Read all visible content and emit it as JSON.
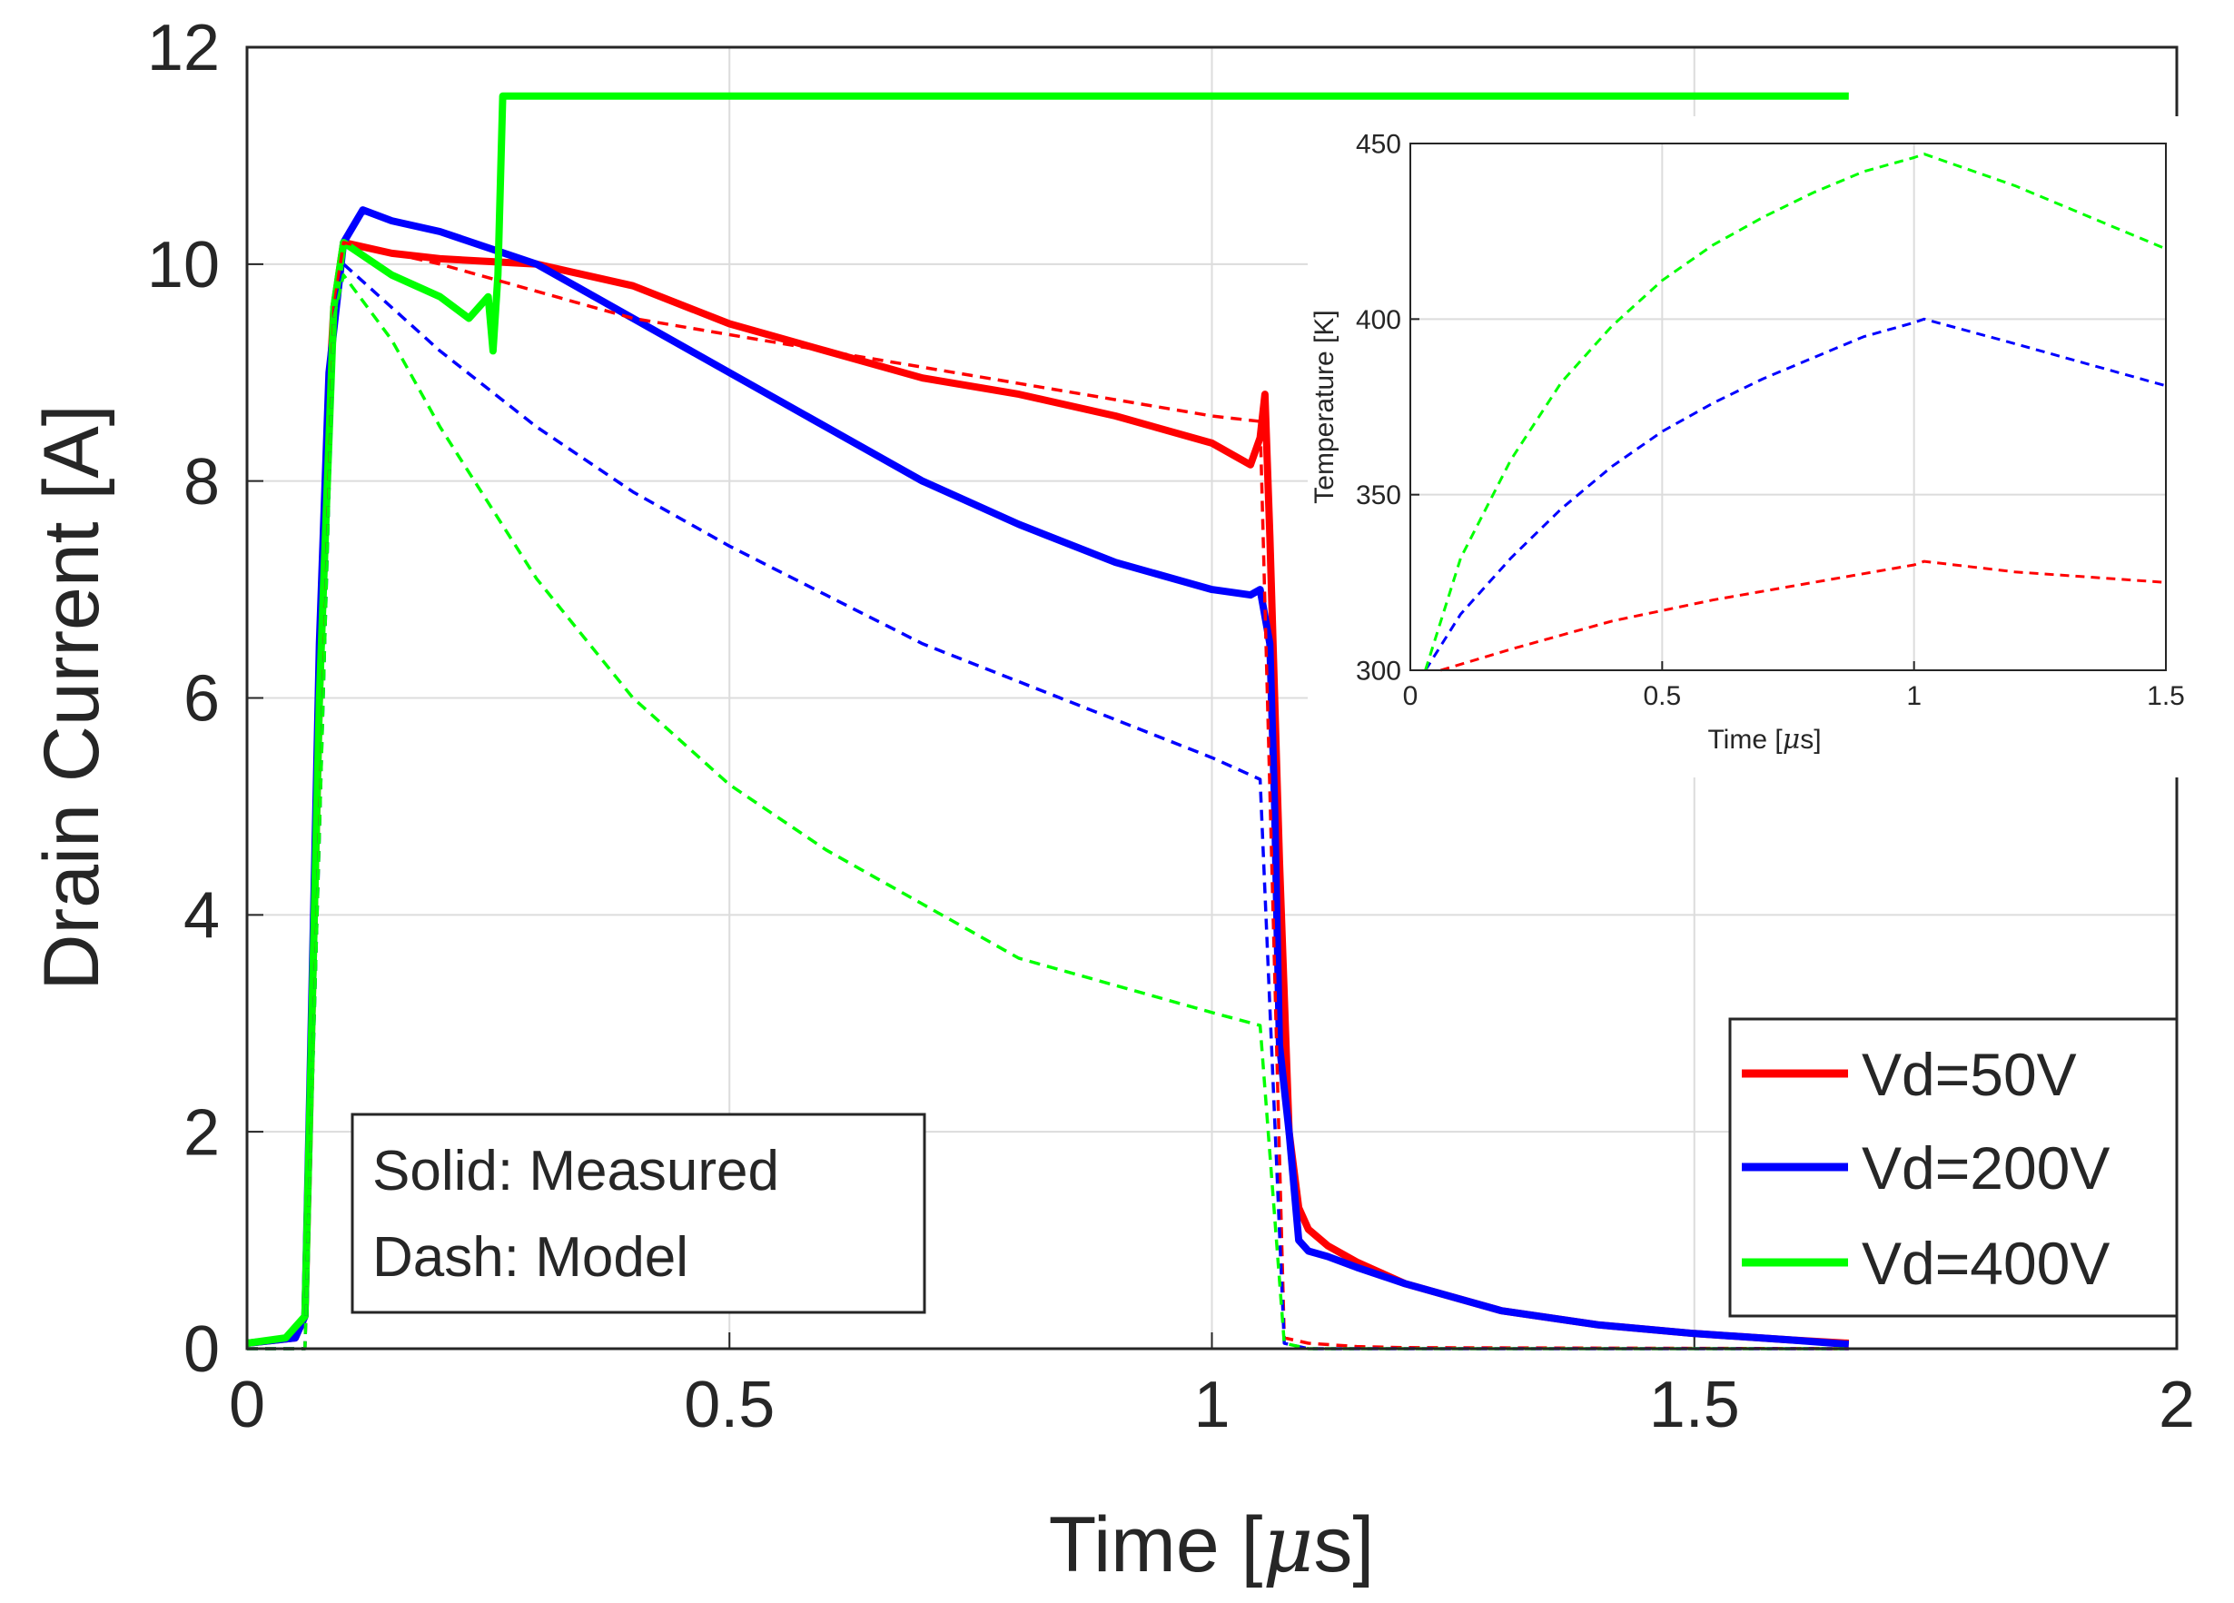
{
  "chart_data": [
    {
      "type": "line",
      "title": "",
      "xlabel": "Time [µs]",
      "xlabel_prefix": "Time [",
      "xlabel_mu": "μ",
      "xlabel_suffix": "s]",
      "ylabel": "Drain Current [A]",
      "xlim": [
        0,
        2
      ],
      "ylim": [
        0,
        12
      ],
      "xticks": [
        0,
        0.5,
        1,
        1.5,
        2
      ],
      "xtick_labels": [
        "0",
        "0.5",
        "1",
        "1.5",
        "2"
      ],
      "yticks": [
        0,
        2,
        4,
        6,
        8,
        10,
        12
      ],
      "ytick_labels": [
        "0",
        "2",
        "4",
        "6",
        "8",
        "10",
        "12"
      ],
      "grid": true,
      "legend": {
        "position": "bottom-right",
        "entries": [
          {
            "label": "Vd=50V",
            "color": "#ff0000"
          },
          {
            "label": "Vd=200V",
            "color": "#0000ff"
          },
          {
            "label": "Vd=400V",
            "color": "#00ff00"
          }
        ]
      },
      "annotation": {
        "position": "bottom-left",
        "lines": [
          "Solid: Measured",
          "Dash: Model"
        ]
      },
      "series": [
        {
          "name": "Vd=50V measured",
          "style": "solid",
          "color": "#ff0000",
          "x": [
            0,
            0.05,
            0.06,
            0.075,
            0.085,
            0.09,
            0.1,
            0.15,
            0.2,
            0.3,
            0.4,
            0.5,
            0.6,
            0.7,
            0.8,
            0.9,
            1.0,
            1.04,
            1.05,
            1.055,
            1.06,
            1.07,
            1.08,
            1.09,
            1.1,
            1.12,
            1.15,
            1.2,
            1.3,
            1.4,
            1.5,
            1.6,
            1.66
          ],
          "y": [
            0.05,
            0.1,
            0.3,
            6.0,
            8.8,
            9.6,
            10.2,
            10.1,
            10.05,
            10.0,
            9.8,
            9.45,
            9.2,
            8.95,
            8.8,
            8.6,
            8.35,
            8.15,
            8.4,
            8.8,
            7.5,
            4.5,
            2.0,
            1.3,
            1.1,
            0.95,
            0.8,
            0.6,
            0.35,
            0.22,
            0.14,
            0.08,
            0.05
          ]
        },
        {
          "name": "Vd=200V measured",
          "style": "solid",
          "color": "#0000ff",
          "x": [
            0,
            0.05,
            0.06,
            0.075,
            0.085,
            0.1,
            0.12,
            0.15,
            0.2,
            0.3,
            0.4,
            0.5,
            0.6,
            0.7,
            0.8,
            0.9,
            1.0,
            1.04,
            1.05,
            1.06,
            1.065,
            1.07,
            1.08,
            1.09,
            1.1,
            1.12,
            1.15,
            1.2,
            1.3,
            1.4,
            1.5,
            1.6,
            1.66
          ],
          "y": [
            0.05,
            0.1,
            0.3,
            6.5,
            9.0,
            10.2,
            10.5,
            10.4,
            10.3,
            10.0,
            9.5,
            9.0,
            8.5,
            8.0,
            7.6,
            7.25,
            7.0,
            6.95,
            7.0,
            6.5,
            5.0,
            2.8,
            2.0,
            1.0,
            0.9,
            0.85,
            0.75,
            0.6,
            0.35,
            0.22,
            0.14,
            0.08,
            0.04
          ]
        },
        {
          "name": "Vd=400V measured",
          "style": "solid",
          "color": "#00ff00",
          "x": [
            0,
            0.04,
            0.05,
            0.06,
            0.075,
            0.09,
            0.1,
            0.15,
            0.2,
            0.23,
            0.25,
            0.255,
            0.26,
            0.265,
            1.51,
            1.53,
            1.66
          ],
          "y": [
            0.05,
            0.1,
            0.2,
            0.3,
            6.0,
            9.6,
            10.2,
            9.9,
            9.7,
            9.5,
            9.7,
            9.2,
            9.9,
            11.55,
            11.55,
            11.55,
            11.55
          ]
        },
        {
          "name": "Vd=50V model",
          "style": "dash",
          "color": "#ff0000",
          "x": [
            0,
            0.06,
            0.09,
            0.1,
            0.2,
            0.3,
            0.4,
            0.5,
            0.6,
            0.7,
            0.8,
            0.9,
            1.0,
            1.05,
            1.075,
            1.1,
            1.15,
            1.2,
            1.66
          ],
          "y": [
            0,
            0,
            9.6,
            10.2,
            10.0,
            9.75,
            9.5,
            9.35,
            9.2,
            9.05,
            8.9,
            8.75,
            8.6,
            8.55,
            0.1,
            0.05,
            0.02,
            0.01,
            0.0
          ]
        },
        {
          "name": "Vd=200V model",
          "style": "dash",
          "color": "#0000ff",
          "x": [
            0,
            0.06,
            0.09,
            0.1,
            0.2,
            0.3,
            0.4,
            0.5,
            0.6,
            0.7,
            0.8,
            0.9,
            1.0,
            1.05,
            1.075,
            1.1,
            1.66
          ],
          "y": [
            0,
            0,
            9.5,
            10.0,
            9.2,
            8.5,
            7.9,
            7.4,
            6.95,
            6.5,
            6.15,
            5.8,
            5.45,
            5.25,
            0.05,
            0.0,
            0.0
          ]
        },
        {
          "name": "Vd=400V model",
          "style": "dash",
          "color": "#00ff00",
          "x": [
            0,
            0.06,
            0.09,
            0.1,
            0.15,
            0.2,
            0.3,
            0.4,
            0.5,
            0.6,
            0.7,
            0.8,
            0.9,
            1.0,
            1.05,
            1.075,
            1.1,
            1.66
          ],
          "y": [
            0,
            0,
            9.5,
            9.9,
            9.3,
            8.5,
            7.1,
            6.0,
            5.2,
            4.6,
            4.1,
            3.6,
            3.35,
            3.1,
            2.98,
            0.05,
            0.0,
            0.0
          ]
        }
      ]
    },
    {
      "type": "line",
      "title": "",
      "xlabel": "Time [µs]",
      "xlabel_prefix": "Time [",
      "xlabel_mu": "μ",
      "xlabel_suffix": "s]",
      "ylabel": "Temperature [K]",
      "xlim": [
        0,
        1.5
      ],
      "ylim": [
        300,
        450
      ],
      "xticks": [
        0,
        0.5,
        1,
        1.5
      ],
      "xtick_labels": [
        "0",
        "0.5",
        "1",
        "1.5"
      ],
      "yticks": [
        300,
        350,
        400,
        450
      ],
      "ytick_labels": [
        "300",
        "350",
        "400",
        "450"
      ],
      "grid": true,
      "position": "top-right inset",
      "series": [
        {
          "name": "Vd=50V model",
          "style": "dash",
          "color": "#ff0000",
          "x": [
            0.06,
            0.2,
            0.4,
            0.6,
            0.8,
            1.0,
            1.02,
            1.2,
            1.5
          ],
          "y": [
            300,
            306,
            314,
            320,
            325,
            330,
            331,
            328,
            325
          ]
        },
        {
          "name": "Vd=200V model",
          "style": "dash",
          "color": "#0000ff",
          "x": [
            0.03,
            0.1,
            0.2,
            0.3,
            0.4,
            0.5,
            0.6,
            0.7,
            0.8,
            0.9,
            1.0,
            1.02,
            1.2,
            1.5
          ],
          "y": [
            300,
            316,
            332,
            346,
            358,
            368,
            376,
            383,
            389,
            395,
            399,
            400,
            393,
            381
          ]
        },
        {
          "name": "Vd=400V model",
          "style": "dash",
          "color": "#00ff00",
          "x": [
            0.03,
            0.1,
            0.2,
            0.3,
            0.4,
            0.5,
            0.6,
            0.7,
            0.8,
            0.9,
            1.0,
            1.02,
            1.2,
            1.5
          ],
          "y": [
            300,
            332,
            360,
            382,
            398,
            411,
            421,
            429,
            436,
            442,
            446,
            447,
            438,
            420
          ]
        }
      ]
    }
  ]
}
